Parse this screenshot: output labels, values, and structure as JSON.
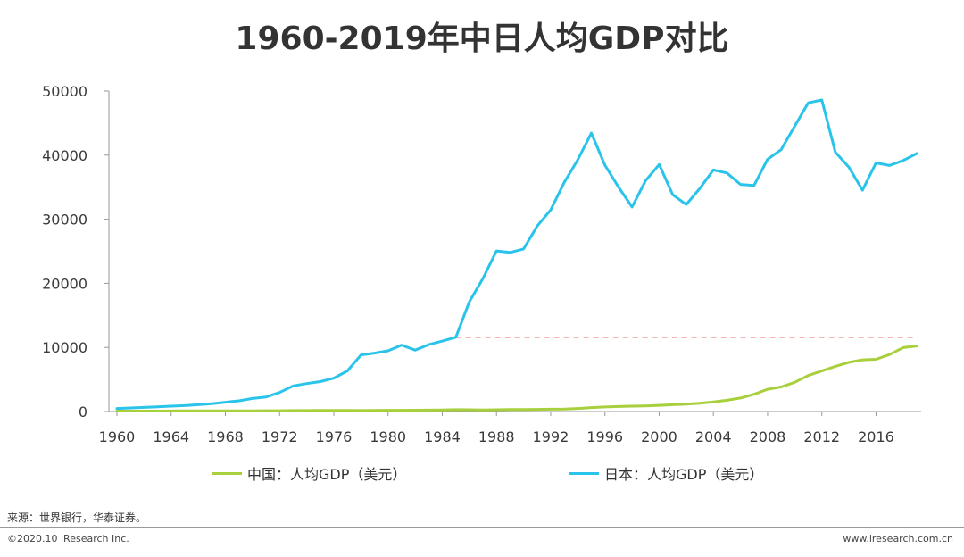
{
  "title": "1960-2019年中日人均GDP对比",
  "source": "来源：世界银行，华泰证券。",
  "footer_left": "©2020.10 iResearch Inc.",
  "footer_right": "www.iresearch.com.cn",
  "colors": {
    "china": "#a8cf3c",
    "japan": "#2ac4ea",
    "reference": "#f08a8a",
    "axis": "#999999"
  },
  "chart_data": {
    "type": "line",
    "title": "1960-2019年中日人均GDP对比",
    "xlim": [
      1960,
      2019
    ],
    "ylim": [
      0,
      50000
    ],
    "x_ticks": [
      "1960",
      "1964",
      "1968",
      "1972",
      "1976",
      "1980",
      "1984",
      "1988",
      "1992",
      "1996",
      "2000",
      "2004",
      "2008",
      "2012",
      "2016"
    ],
    "y_ticks": [
      "0",
      "10000",
      "20000",
      "30000",
      "40000",
      "50000"
    ],
    "x": [
      1960,
      1961,
      1962,
      1963,
      1964,
      1965,
      1966,
      1967,
      1968,
      1969,
      1970,
      1971,
      1972,
      1973,
      1974,
      1975,
      1976,
      1977,
      1978,
      1979,
      1980,
      1981,
      1982,
      1983,
      1984,
      1985,
      1986,
      1987,
      1988,
      1989,
      1990,
      1991,
      1992,
      1993,
      1994,
      1995,
      1996,
      1997,
      1998,
      1999,
      2000,
      2001,
      2002,
      2003,
      2004,
      2005,
      2006,
      2007,
      2008,
      2009,
      2010,
      2011,
      2012,
      2013,
      2014,
      2015,
      2016,
      2017,
      2018,
      2019
    ],
    "series": [
      {
        "name": "中国：人均GDP（美元）",
        "color": "#a8cf3c",
        "values": [
          90,
          76,
          70,
          74,
          85,
          98,
          104,
          96,
          91,
          100,
          113,
          119,
          132,
          157,
          160,
          178,
          165,
          185,
          156,
          184,
          195,
          197,
          203,
          225,
          250,
          294,
          281,
          251,
          284,
          311,
          318,
          333,
          366,
          377,
          473,
          610,
          709,
          782,
          829,
          873,
          959,
          1053,
          1149,
          1289,
          1509,
          1753,
          2099,
          2694,
          3468,
          3832,
          4550,
          5618,
          6317,
          7051,
          7679,
          8067,
          8148,
          8879,
          9977,
          10217
        ]
      },
      {
        "name": "日本：人均GDP（美元）",
        "color": "#2ac4ea",
        "values": [
          479,
          564,
          634,
          718,
          836,
          919,
          1058,
          1228,
          1450,
          1669,
          2037,
          2272,
          2967,
          3997,
          4354,
          4659,
          5198,
          6335,
          8821,
          9105,
          9465,
          10361,
          9578,
          10425,
          10984,
          11584,
          17112,
          20745,
          25051,
          24813,
          25359,
          28925,
          31465,
          35766,
          39269,
          43440,
          38437,
          35022,
          31903,
          36027,
          38532,
          33846,
          32289,
          34808,
          37688,
          37218,
          35434,
          35275,
          39339,
          40855,
          44508,
          48168,
          48603,
          40454,
          38109,
          34524,
          38794,
          38387,
          39159,
          40247
        ]
      }
    ],
    "reference_line": {
      "y": 11584,
      "from_x": 1985,
      "to_x": 2019,
      "style": "dashed"
    }
  }
}
